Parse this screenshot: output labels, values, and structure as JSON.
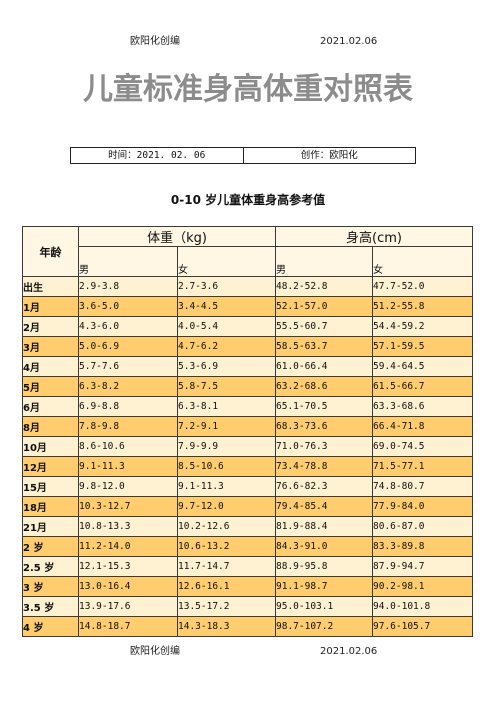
{
  "header": {
    "left": "欧阳化创编",
    "right": "2021.02.06"
  },
  "title": "儿童标准身高体重对照表",
  "meta": {
    "time": "时间：2021. 02. 06",
    "author": "创作：欧阳化"
  },
  "table_title": "0-10 岁儿童体重身高参考值",
  "table": {
    "age_header": "年龄",
    "weight_header": "体重（kg)",
    "height_header": "身高(cm)",
    "sub_headers": [
      "男",
      "女",
      "男",
      "女"
    ],
    "rows": [
      {
        "age": "出生",
        "w_m": "2.9-3.8",
        "w_f": "2.7-3.6",
        "h_m": "48.2-52.8",
        "h_f": "47.7-52.0"
      },
      {
        "age": "1月",
        "w_m": "3.6-5.0",
        "w_f": "3.4-4.5",
        "h_m": "52.1-57.0",
        "h_f": "51.2-55.8"
      },
      {
        "age": "2月",
        "w_m": "4.3-6.0",
        "w_f": "4.0-5.4",
        "h_m": "55.5-60.7",
        "h_f": "54.4-59.2"
      },
      {
        "age": "3月",
        "w_m": "5.0-6.9",
        "w_f": "4.7-6.2",
        "h_m": "58.5-63.7",
        "h_f": "57.1-59.5"
      },
      {
        "age": "4月",
        "w_m": "5.7-7.6",
        "w_f": "5.3-6.9",
        "h_m": "61.0-66.4",
        "h_f": "59.4-64.5"
      },
      {
        "age": "5月",
        "w_m": "6.3-8.2",
        "w_f": "5.8-7.5",
        "h_m": "63.2-68.6",
        "h_f": "61.5-66.7"
      },
      {
        "age": "6月",
        "w_m": "6.9-8.8",
        "w_f": "6.3-8.1",
        "h_m": "65.1-70.5",
        "h_f": "63.3-68.6"
      },
      {
        "age": "8月",
        "w_m": "7.8-9.8",
        "w_f": "7.2-9.1",
        "h_m": "68.3-73.6",
        "h_f": "66.4-71.8"
      },
      {
        "age": "10月",
        "w_m": "8.6-10.6",
        "w_f": "7.9-9.9",
        "h_m": "71.0-76.3",
        "h_f": "69.0-74.5"
      },
      {
        "age": "12月",
        "w_m": "9.1-11.3",
        "w_f": "8.5-10.6",
        "h_m": "73.4-78.8",
        "h_f": "71.5-77.1"
      },
      {
        "age": "15月",
        "w_m": "9.8-12.0",
        "w_f": "9.1-11.3",
        "h_m": "76.6-82.3",
        "h_f": "74.8-80.7"
      },
      {
        "age": "18月",
        "w_m": "10.3-12.7",
        "w_f": "9.7-12.0",
        "h_m": "79.4-85.4",
        "h_f": "77.9-84.0"
      },
      {
        "age": "21月",
        "w_m": "10.8-13.3",
        "w_f": "10.2-12.6",
        "h_m": "81.9-88.4",
        "h_f": "80.6-87.0"
      },
      {
        "age": "2 岁",
        "w_m": "11.2-14.0",
        "w_f": "10.6-13.2",
        "h_m": "84.3-91.0",
        "h_f": "83.3-89.8"
      },
      {
        "age": "2.5 岁",
        "w_m": "12.1-15.3",
        "w_f": "11.7-14.7",
        "h_m": "88.9-95.8",
        "h_f": "87.9-94.7"
      },
      {
        "age": "3 岁",
        "w_m": "13.0-16.4",
        "w_f": "12.6-16.1",
        "h_m": "91.1-98.7",
        "h_f": "90.2-98.1"
      },
      {
        "age": "3.5 岁",
        "w_m": "13.9-17.6",
        "w_f": "13.5-17.2",
        "h_m": "95.0-103.1",
        "h_f": "94.0-101.8"
      },
      {
        "age": "4 岁",
        "w_m": "14.8-18.7",
        "w_f": "14.3-18.3",
        "h_m": "98.7-107.2",
        "h_f": "97.6-105.7"
      }
    ]
  },
  "footer": {
    "left": "欧阳化创编",
    "right": "2021.02.06"
  },
  "colors": {
    "title": "#8c8c8c",
    "header_bg": "#FFF6E4",
    "band_light": "#FFF2D3",
    "band_dark": "#FFCC6E"
  }
}
